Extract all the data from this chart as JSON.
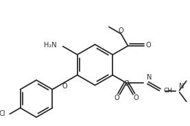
{
  "bg_color": "#ffffff",
  "line_color": "#2a2a2a",
  "line_width": 1.3,
  "figsize": [
    2.77,
    1.84
  ],
  "dpi": 100,
  "xlim": [
    0.0,
    10.0
  ],
  "ylim": [
    0.0,
    6.8
  ]
}
